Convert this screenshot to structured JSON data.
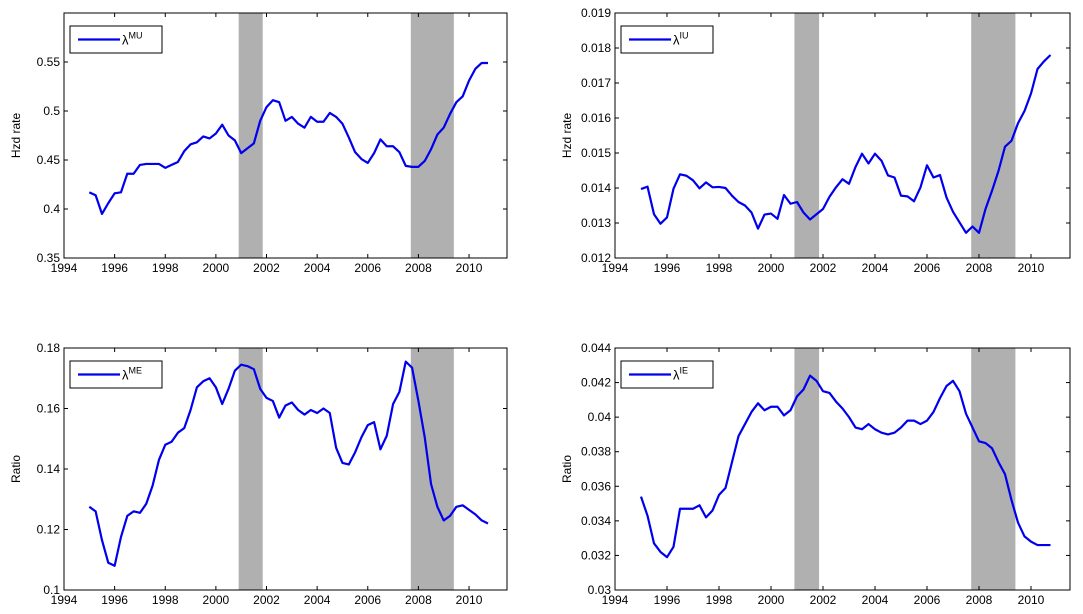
{
  "figure": {
    "recessions": [
      [
        2000.9,
        2001.85
      ],
      [
        2007.7,
        2009.4
      ]
    ],
    "recession_color": "#b0b0b0",
    "line_color": "#0000ee"
  },
  "chart_data": [
    {
      "type": "line",
      "ylabel": "Hzd rate",
      "legend": {
        "symbol": "λ",
        "sup": "MU",
        "placement": "top-left"
      },
      "xlim": [
        1994,
        2011.5
      ],
      "ylim": [
        0.35,
        0.6
      ],
      "xticks": [
        1994,
        1996,
        1998,
        2000,
        2002,
        2004,
        2006,
        2008,
        2010
      ],
      "yticks": [
        0.35,
        0.4,
        0.45,
        0.5,
        0.55
      ],
      "ytick_labels": [
        "0.35",
        "0.4",
        "0.45",
        "0.5",
        "0.55"
      ],
      "x": [
        1995.0,
        1995.25,
        1995.5,
        1995.75,
        1996.0,
        1996.25,
        1996.5,
        1996.75,
        1997.0,
        1997.25,
        1997.5,
        1997.75,
        1998.0,
        1998.25,
        1998.5,
        1998.75,
        1999.0,
        1999.25,
        1999.5,
        1999.75,
        2000.0,
        2000.25,
        2000.5,
        2000.75,
        2001.0,
        2001.25,
        2001.5,
        2001.75,
        2002.0,
        2002.25,
        2002.5,
        2002.75,
        2003.0,
        2003.25,
        2003.5,
        2003.75,
        2004.0,
        2004.25,
        2004.5,
        2004.75,
        2005.0,
        2005.25,
        2005.5,
        2005.75,
        2006.0,
        2006.25,
        2006.5,
        2006.75,
        2007.0,
        2007.25,
        2007.5,
        2007.75,
        2008.0,
        2008.25,
        2008.5,
        2008.75,
        2009.0,
        2009.25,
        2009.5,
        2009.75,
        2010.0,
        2010.25,
        2010.5,
        2010.75
      ],
      "series": [
        {
          "name": "λMU",
          "values": [
            0.417,
            0.414,
            0.395,
            0.406,
            0.416,
            0.417,
            0.436,
            0.436,
            0.445,
            0.446,
            0.446,
            0.446,
            0.442,
            0.445,
            0.448,
            0.459,
            0.466,
            0.468,
            0.474,
            0.472,
            0.477,
            0.486,
            0.475,
            0.47,
            0.457,
            0.462,
            0.467,
            0.49,
            0.504,
            0.511,
            0.509,
            0.49,
            0.494,
            0.487,
            0.483,
            0.494,
            0.489,
            0.489,
            0.498,
            0.494,
            0.487,
            0.473,
            0.458,
            0.451,
            0.447,
            0.457,
            0.471,
            0.464,
            0.464,
            0.458,
            0.444,
            0.443,
            0.443,
            0.449,
            0.461,
            0.476,
            0.483,
            0.497,
            0.509,
            0.515,
            0.531,
            0.543,
            0.549,
            0.549
          ]
        }
      ]
    },
    {
      "type": "line",
      "ylabel": "Hzd rate",
      "legend": {
        "symbol": "λ",
        "sup": "IU",
        "placement": "top-left"
      },
      "xlim": [
        1994,
        2011.5
      ],
      "ylim": [
        0.012,
        0.019
      ],
      "xticks": [
        1994,
        1996,
        1998,
        2000,
        2002,
        2004,
        2006,
        2008,
        2010
      ],
      "yticks": [
        0.012,
        0.013,
        0.014,
        0.015,
        0.016,
        0.017,
        0.018,
        0.019
      ],
      "ytick_labels": [
        "0.012",
        "0.013",
        "0.014",
        "0.015",
        "0.016",
        "0.017",
        "0.018",
        "0.019"
      ],
      "x": [
        1995.0,
        1995.25,
        1995.5,
        1995.75,
        1996.0,
        1996.25,
        1996.5,
        1996.75,
        1997.0,
        1997.25,
        1997.5,
        1997.75,
        1998.0,
        1998.25,
        1998.5,
        1998.75,
        1999.0,
        1999.25,
        1999.5,
        1999.75,
        2000.0,
        2000.25,
        2000.5,
        2000.75,
        2001.0,
        2001.25,
        2001.5,
        2001.75,
        2002.0,
        2002.25,
        2002.5,
        2002.75,
        2003.0,
        2003.25,
        2003.5,
        2003.75,
        2004.0,
        2004.25,
        2004.5,
        2004.75,
        2005.0,
        2005.25,
        2005.5,
        2005.75,
        2006.0,
        2006.25,
        2006.5,
        2006.75,
        2007.0,
        2007.25,
        2007.5,
        2007.75,
        2008.0,
        2008.25,
        2008.5,
        2008.75,
        2009.0,
        2009.25,
        2009.5,
        2009.75,
        2010.0,
        2010.25,
        2010.5,
        2010.75
      ],
      "series": [
        {
          "name": "λIU",
          "values": [
            0.01397,
            0.01404,
            0.01325,
            0.01298,
            0.01316,
            0.01398,
            0.01439,
            0.01435,
            0.01422,
            0.01399,
            0.01416,
            0.01402,
            0.01403,
            0.014,
            0.01378,
            0.0136,
            0.0135,
            0.0133,
            0.01284,
            0.01324,
            0.01327,
            0.01312,
            0.0138,
            0.01355,
            0.0136,
            0.0133,
            0.0131,
            0.01325,
            0.0134,
            0.01375,
            0.01402,
            0.01425,
            0.01412,
            0.0146,
            0.01498,
            0.0147,
            0.01498,
            0.01478,
            0.01436,
            0.0143,
            0.01378,
            0.01376,
            0.01362,
            0.01402,
            0.01465,
            0.0143,
            0.01437,
            0.01373,
            0.01332,
            0.01302,
            0.01272,
            0.0129,
            0.01272,
            0.0134,
            0.01392,
            0.01449,
            0.01518,
            0.01535,
            0.01585,
            0.0162,
            0.0167,
            0.0174,
            0.01762,
            0.0178
          ]
        }
      ]
    },
    {
      "type": "line",
      "ylabel": "Ratio",
      "legend": {
        "symbol": "λ",
        "sup": "ME",
        "placement": "top-left"
      },
      "xlim": [
        1994,
        2011.5
      ],
      "ylim": [
        0.1,
        0.18
      ],
      "xticks": [
        1994,
        1996,
        1998,
        2000,
        2002,
        2004,
        2006,
        2008,
        2010
      ],
      "yticks": [
        0.1,
        0.12,
        0.14,
        0.16,
        0.18
      ],
      "ytick_labels": [
        "0.1",
        "0.12",
        "0.14",
        "0.16",
        "0.18"
      ],
      "x": [
        1995.0,
        1995.25,
        1995.5,
        1995.75,
        1996.0,
        1996.25,
        1996.5,
        1996.75,
        1997.0,
        1997.25,
        1997.5,
        1997.75,
        1998.0,
        1998.25,
        1998.5,
        1998.75,
        1999.0,
        1999.25,
        1999.5,
        1999.75,
        2000.0,
        2000.25,
        2000.5,
        2000.75,
        2001.0,
        2001.25,
        2001.5,
        2001.75,
        2002.0,
        2002.25,
        2002.5,
        2002.75,
        2003.0,
        2003.25,
        2003.5,
        2003.75,
        2004.0,
        2004.25,
        2004.5,
        2004.75,
        2005.0,
        2005.25,
        2005.5,
        2005.75,
        2006.0,
        2006.25,
        2006.5,
        2006.75,
        2007.0,
        2007.25,
        2007.5,
        2007.75,
        2008.0,
        2008.25,
        2008.5,
        2008.75,
        2009.0,
        2009.25,
        2009.5,
        2009.75,
        2010.0,
        2010.25,
        2010.5,
        2010.75
      ],
      "series": [
        {
          "name": "λME",
          "values": [
            0.1275,
            0.126,
            0.1165,
            0.109,
            0.108,
            0.1175,
            0.1245,
            0.126,
            0.1255,
            0.1285,
            0.1345,
            0.143,
            0.148,
            0.149,
            0.152,
            0.1535,
            0.1595,
            0.167,
            0.169,
            0.17,
            0.167,
            0.1615,
            0.1665,
            0.1725,
            0.1745,
            0.174,
            0.173,
            0.1665,
            0.1635,
            0.1625,
            0.157,
            0.161,
            0.162,
            0.1595,
            0.158,
            0.1595,
            0.1585,
            0.16,
            0.1585,
            0.147,
            0.142,
            0.1415,
            0.1455,
            0.1505,
            0.1545,
            0.1555,
            0.1465,
            0.151,
            0.1615,
            0.1655,
            0.1755,
            0.1735,
            0.1625,
            0.1505,
            0.135,
            0.1275,
            0.123,
            0.1245,
            0.1275,
            0.128,
            0.1265,
            0.125,
            0.123,
            0.122
          ]
        }
      ]
    },
    {
      "type": "line",
      "ylabel": "Ratio",
      "legend": {
        "symbol": "λ",
        "sup": "IE",
        "placement": "top-left"
      },
      "xlim": [
        1994,
        2011.5
      ],
      "ylim": [
        0.03,
        0.044
      ],
      "xticks": [
        1994,
        1996,
        1998,
        2000,
        2002,
        2004,
        2006,
        2008,
        2010
      ],
      "yticks": [
        0.03,
        0.032,
        0.034,
        0.036,
        0.038,
        0.04,
        0.042,
        0.044
      ],
      "ytick_labels": [
        "0.03",
        "0.032",
        "0.034",
        "0.036",
        "0.038",
        "0.04",
        "0.042",
        "0.044"
      ],
      "x": [
        1995.0,
        1995.25,
        1995.5,
        1995.75,
        1996.0,
        1996.25,
        1996.5,
        1996.75,
        1997.0,
        1997.25,
        1997.5,
        1997.75,
        1998.0,
        1998.25,
        1998.5,
        1998.75,
        1999.0,
        1999.25,
        1999.5,
        1999.75,
        2000.0,
        2000.25,
        2000.5,
        2000.75,
        2001.0,
        2001.25,
        2001.5,
        2001.75,
        2002.0,
        2002.25,
        2002.5,
        2002.75,
        2003.0,
        2003.25,
        2003.5,
        2003.75,
        2004.0,
        2004.25,
        2004.5,
        2004.75,
        2005.0,
        2005.25,
        2005.5,
        2005.75,
        2006.0,
        2006.25,
        2006.5,
        2006.75,
        2007.0,
        2007.25,
        2007.5,
        2007.75,
        2008.0,
        2008.25,
        2008.5,
        2008.75,
        2009.0,
        2009.25,
        2009.5,
        2009.75,
        2010.0,
        2010.25,
        2010.5,
        2010.75
      ],
      "series": [
        {
          "name": "λIE",
          "values": [
            0.0354,
            0.0343,
            0.0327,
            0.0322,
            0.0319,
            0.0325,
            0.0347,
            0.0347,
            0.0347,
            0.0349,
            0.0342,
            0.0346,
            0.0355,
            0.0359,
            0.0374,
            0.0389,
            0.0396,
            0.0403,
            0.0408,
            0.0404,
            0.0406,
            0.0406,
            0.0401,
            0.0404,
            0.0412,
            0.0416,
            0.0424,
            0.0421,
            0.0415,
            0.0414,
            0.0409,
            0.0405,
            0.04,
            0.0394,
            0.0393,
            0.0396,
            0.0393,
            0.0391,
            0.039,
            0.0391,
            0.0394,
            0.0398,
            0.0398,
            0.0396,
            0.0398,
            0.0403,
            0.0411,
            0.0418,
            0.0421,
            0.0415,
            0.0402,
            0.0394,
            0.0386,
            0.0385,
            0.0382,
            0.0374,
            0.0367,
            0.0352,
            0.0339,
            0.0331,
            0.0328,
            0.0326,
            0.0326,
            0.0326
          ]
        }
      ]
    }
  ]
}
